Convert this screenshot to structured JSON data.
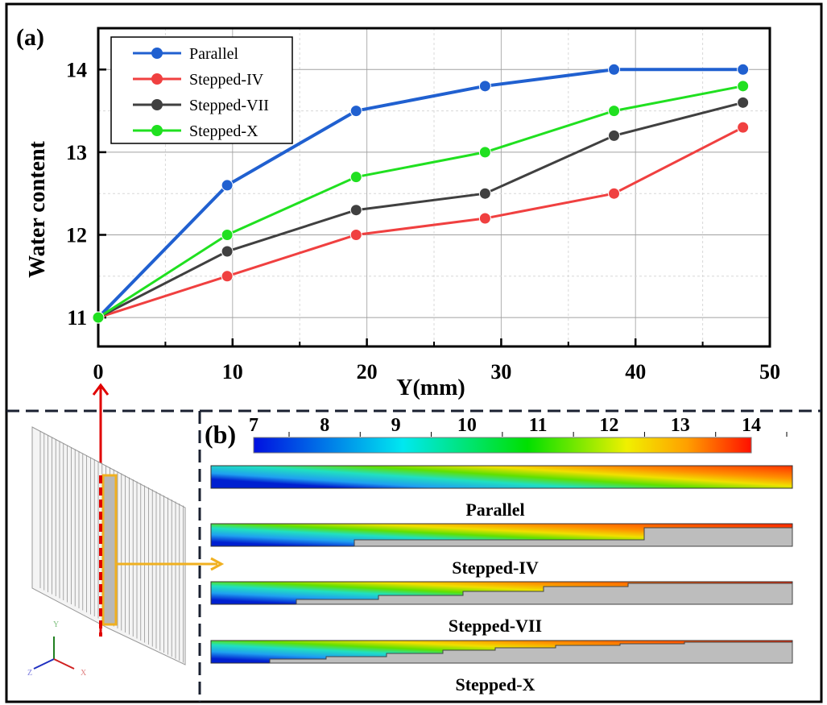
{
  "chart_data": {
    "type": "line",
    "panel_label": "(a)",
    "xlabel": "Y(mm)",
    "ylabel": "Water content",
    "x": [
      0,
      9.6,
      19.2,
      28.8,
      38.4,
      48
    ],
    "xlim": [
      0,
      50
    ],
    "ylim": [
      10.65,
      14.5
    ],
    "xticks": [
      "0",
      "10",
      "20",
      "30",
      "40",
      "50"
    ],
    "yticks": [
      "11",
      "12",
      "13",
      "14"
    ],
    "grid": true,
    "legend_position": "top-left",
    "series": [
      {
        "name": "Parallel",
        "color": "#2060d0",
        "values": [
          11,
          12.6,
          13.5,
          13.8,
          14.0,
          14.0
        ]
      },
      {
        "name": "Stepped-IV",
        "color": "#f04040",
        "values": [
          11,
          11.5,
          12.0,
          12.2,
          12.5,
          13.3
        ]
      },
      {
        "name": "Stepped-VII",
        "color": "#404040",
        "values": [
          11,
          11.8,
          12.3,
          12.5,
          13.2,
          13.6
        ]
      },
      {
        "name": "Stepped-X",
        "color": "#20e020",
        "values": [
          11,
          12.0,
          12.7,
          13.0,
          13.5,
          13.8
        ]
      }
    ]
  },
  "panel_b": {
    "label": "(b)",
    "colorbar_ticks": [
      "7",
      "8",
      "9",
      "10",
      "11",
      "12",
      "13",
      "14"
    ],
    "contours": [
      "Parallel",
      "Stepped-IV",
      "Stepped-VII",
      "Stepped-X"
    ],
    "axis_labels": {
      "x": "X",
      "y": "Y",
      "z": "Z"
    }
  }
}
